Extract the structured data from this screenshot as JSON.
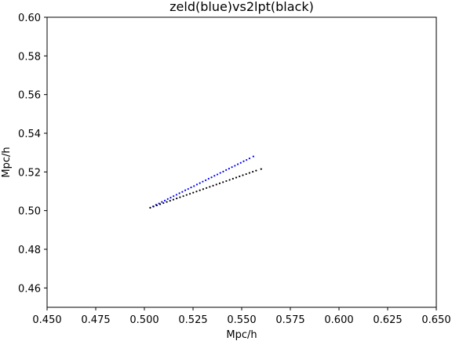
{
  "chart_data": {
    "type": "scatter",
    "title": "zeld(blue)vs2lpt(black)",
    "xlabel": "Mpc/h",
    "ylabel": "Mpc/h",
    "xlim": [
      0.45,
      0.65
    ],
    "ylim": [
      0.45,
      0.6
    ],
    "xticks": [
      "0.450",
      "0.475",
      "0.500",
      "0.525",
      "0.550",
      "0.575",
      "0.600",
      "0.625",
      "0.650"
    ],
    "yticks": [
      "0.46",
      "0.48",
      "0.50",
      "0.52",
      "0.54",
      "0.56",
      "0.58",
      "0.60"
    ],
    "grid": false,
    "series": [
      {
        "color": "#0000ff",
        "x": [
          0.503,
          0.5045,
          0.506,
          0.5075,
          0.509,
          0.5105,
          0.512,
          0.5135,
          0.515,
          0.5165,
          0.518,
          0.5195,
          0.521,
          0.5225,
          0.524,
          0.5255,
          0.527,
          0.5285,
          0.53,
          0.5315,
          0.533,
          0.5345,
          0.536,
          0.5375,
          0.539,
          0.5405,
          0.542,
          0.5435,
          0.545,
          0.5465,
          0.548,
          0.5495,
          0.551,
          0.5525,
          0.554,
          0.556
        ],
        "y": [
          0.5015,
          0.5022,
          0.503,
          0.5037,
          0.5045,
          0.5052,
          0.506,
          0.5067,
          0.5075,
          0.5082,
          0.509,
          0.5097,
          0.5105,
          0.5112,
          0.512,
          0.5127,
          0.5135,
          0.5142,
          0.515,
          0.5157,
          0.5165,
          0.5172,
          0.518,
          0.5187,
          0.5195,
          0.5202,
          0.521,
          0.5217,
          0.5225,
          0.5232,
          0.524,
          0.5247,
          0.5255,
          0.5262,
          0.527,
          0.528
        ]
      },
      {
        "color": "#000000",
        "x": [
          0.503,
          0.5047,
          0.5064,
          0.5081,
          0.5098,
          0.5115,
          0.5132,
          0.5149,
          0.5166,
          0.5183,
          0.52,
          0.5217,
          0.5234,
          0.5251,
          0.5268,
          0.5285,
          0.5302,
          0.5319,
          0.5336,
          0.5353,
          0.537,
          0.5387,
          0.5404,
          0.5421,
          0.5438,
          0.5455,
          0.5472,
          0.5489,
          0.5506,
          0.5523,
          0.554,
          0.5557,
          0.5574,
          0.56
        ],
        "y": [
          0.5015,
          0.5021,
          0.5027,
          0.5033,
          0.5039,
          0.5045,
          0.5051,
          0.5057,
          0.5063,
          0.5069,
          0.5075,
          0.5081,
          0.5087,
          0.5093,
          0.5099,
          0.5105,
          0.5111,
          0.5117,
          0.5123,
          0.5129,
          0.5135,
          0.5141,
          0.5147,
          0.5153,
          0.5159,
          0.5165,
          0.5171,
          0.5177,
          0.5183,
          0.5189,
          0.5195,
          0.5201,
          0.5207,
          0.5215
        ]
      }
    ]
  }
}
